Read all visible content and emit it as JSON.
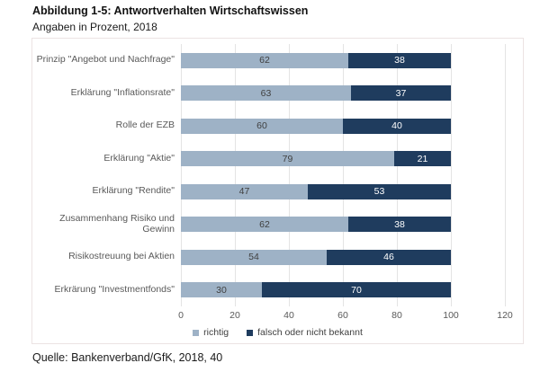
{
  "header": {
    "title": "Abbildung 1-5: Antwortverhalten Wirtschaftswissen",
    "subtitle": "Angaben in Prozent, 2018"
  },
  "chart_data": {
    "type": "bar",
    "orientation": "horizontal",
    "stacked": true,
    "title": "Abbildung 1-5: Antwortverhalten Wirtschaftswissen",
    "subtitle": "Angaben in Prozent, 2018",
    "categories": [
      "Prinzip \"Angebot und Nachfrage\"",
      "Erklärung \"Inflationsrate\"",
      "Rolle der EZB",
      "Erklärung \"Aktie\"",
      "Erklärung \"Rendite\"",
      "Zusammenhang Risiko und Gewinn",
      "Risikostreuung bei Aktien",
      "Erkrärung \"Investmentfonds\""
    ],
    "series": [
      {
        "name": "richtig",
        "color": "#9eb2c6",
        "value_label_color": "#404040",
        "values": [
          62,
          63,
          60,
          79,
          47,
          62,
          54,
          30
        ]
      },
      {
        "name": "falsch oder nicht bekannt",
        "color": "#1f3c5e",
        "value_label_color": "#ffffff",
        "values": [
          38,
          37,
          40,
          21,
          53,
          38,
          46,
          70
        ]
      }
    ],
    "xlabel": "",
    "ylabel": "",
    "xlim": [
      0,
      120
    ],
    "xticks": [
      0,
      20,
      40,
      60,
      80,
      100,
      120
    ],
    "grid": true,
    "gridline_color": "#e4e4e4",
    "legend_position": "bottom"
  },
  "footer": {
    "source": "Quelle: Bankenverband/GfK, 2018, 40"
  }
}
